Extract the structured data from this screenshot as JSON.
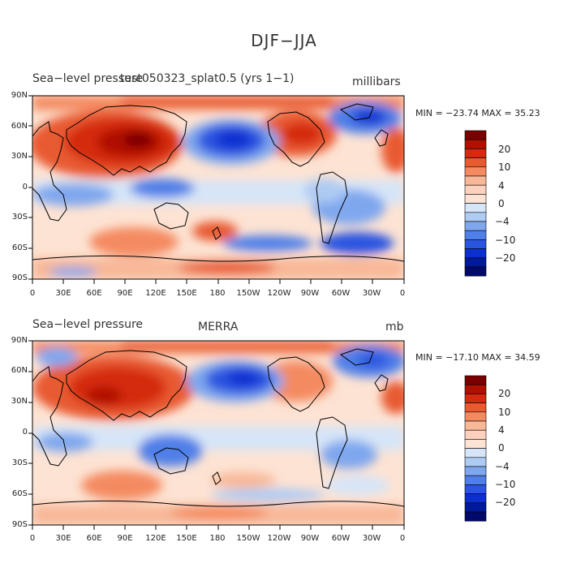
{
  "figure": {
    "title": "DJF−JJA",
    "lat_labels": [
      "90N",
      "60N",
      "30N",
      "0",
      "30S",
      "60S",
      "90S"
    ],
    "lon_labels": [
      "0",
      "30E",
      "60E",
      "90E",
      "120E",
      "150E",
      "180",
      "150W",
      "120W",
      "90W",
      "60W",
      "30W",
      "0"
    ]
  },
  "panels": [
    {
      "left_title": "Sea−level pressure",
      "center_title": "test050323_splat0.5 (yrs 1−1)",
      "units": "millibars",
      "stats": "MIN = −23.74  MAX =  35.23",
      "colorbar_labels": [
        "20",
        "10",
        "4",
        "0",
        "−4",
        "−10",
        "−20"
      ]
    },
    {
      "left_title": "Sea−level pressure",
      "center_title": "MERRA",
      "units": "mb",
      "stats": "MIN = −17.10  MAX =  34.59",
      "colorbar_labels": [
        "20",
        "10",
        "4",
        "0",
        "−4",
        "−10",
        "−20"
      ]
    }
  ],
  "colors": {
    "levels": [
      "#7a0000",
      "#b01000",
      "#d42a10",
      "#e85a30",
      "#f48a60",
      "#f8b898",
      "#fde3d3",
      "#ffffff",
      "#d6e5f8",
      "#aecbf3",
      "#7fa7ee",
      "#4f7fe8",
      "#2a55e0",
      "#0c2fd0",
      "#001a9c",
      "#000a6a"
    ],
    "land_outline": "#000000"
  }
}
